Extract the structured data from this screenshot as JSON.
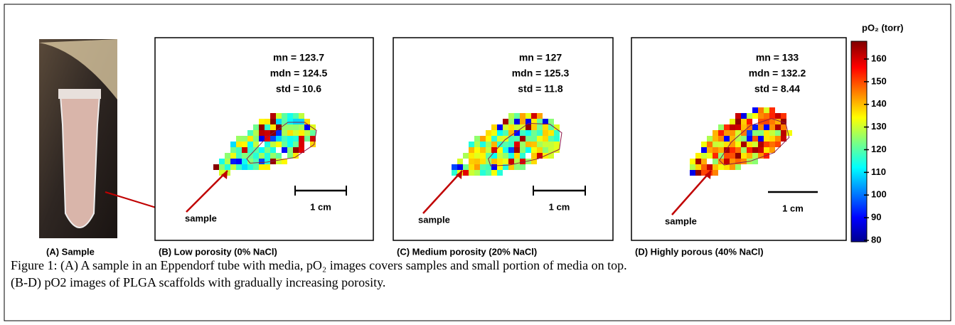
{
  "panel_a": {
    "label": "(A) Sample"
  },
  "maps": [
    {
      "stats": [
        "mn = 123.7",
        "mdn = 124.5",
        "std = 10.6"
      ],
      "scale": "1 cm",
      "pointer": "sample",
      "label": "(B) Low porosity (0% NaCl)"
    },
    {
      "stats": [
        "mn = 127",
        "mdn = 125.3",
        "std = 11.8"
      ],
      "scale": "1 cm",
      "pointer": "sample",
      "label": "(C) Medium porosity (20% NaCl)"
    },
    {
      "stats": [
        "mn = 133",
        "mdn = 132.2",
        "std = 8.44"
      ],
      "scale": "1 cm",
      "pointer": "sample",
      "label": "(D) Highly porous (40% NaCl)"
    }
  ],
  "colorbar": {
    "title": "pO₂ (torr)",
    "ticks": [
      160,
      150,
      140,
      130,
      120,
      110,
      100,
      90,
      80
    ]
  },
  "caption": [
    "Figure 1: (A) A sample in an Eppendorf tube with media, pO₂ images covers samples and small portion of media on top.",
    "(B-D) pO2 images of PLGA scaffolds with gradually increasing porosity."
  ]
}
